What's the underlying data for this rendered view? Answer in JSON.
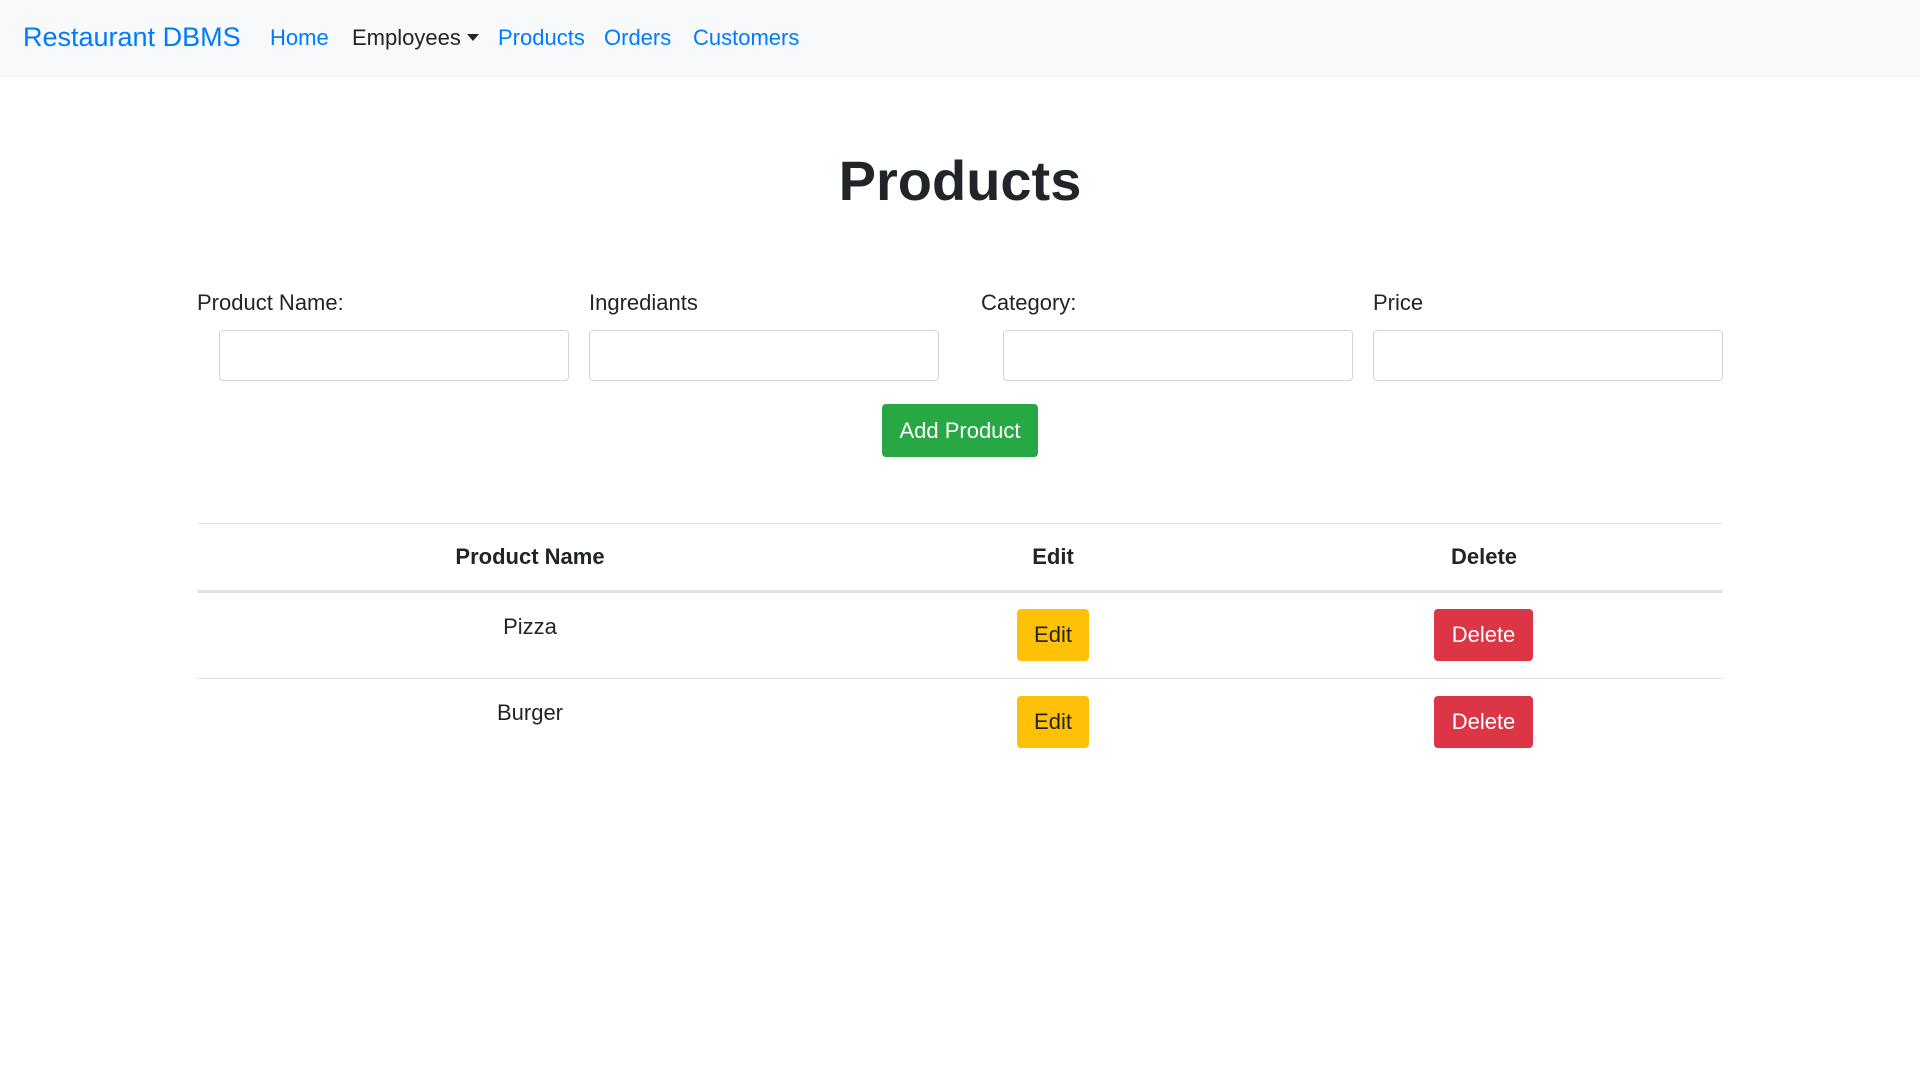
{
  "navbar": {
    "brand": "Restaurant DBMS",
    "links": {
      "home": "Home",
      "employees": "Employees",
      "products": "Products",
      "orders": "Orders",
      "customers": "Customers"
    }
  },
  "page": {
    "title": "Products"
  },
  "form": {
    "product_name_label": "Product Name:",
    "ingredients_label": "Ingrediants",
    "category_label": "Category:",
    "price_label": "Price",
    "product_name_value": "",
    "ingredients_value": "",
    "category_value": "",
    "price_value": "",
    "add_button": "Add Product"
  },
  "table": {
    "headers": {
      "name": "Product Name",
      "edit": "Edit",
      "delete": "Delete"
    },
    "rows": [
      {
        "name": "Pizza",
        "edit": "Edit",
        "delete": "Delete"
      },
      {
        "name": "Burger",
        "edit": "Edit",
        "delete": "Delete"
      }
    ]
  },
  "colors": {
    "link": "#007bff",
    "navbar_bg": "#f8f9fa",
    "success": "#28a745",
    "warning": "#ffc107",
    "danger": "#dc3545"
  }
}
